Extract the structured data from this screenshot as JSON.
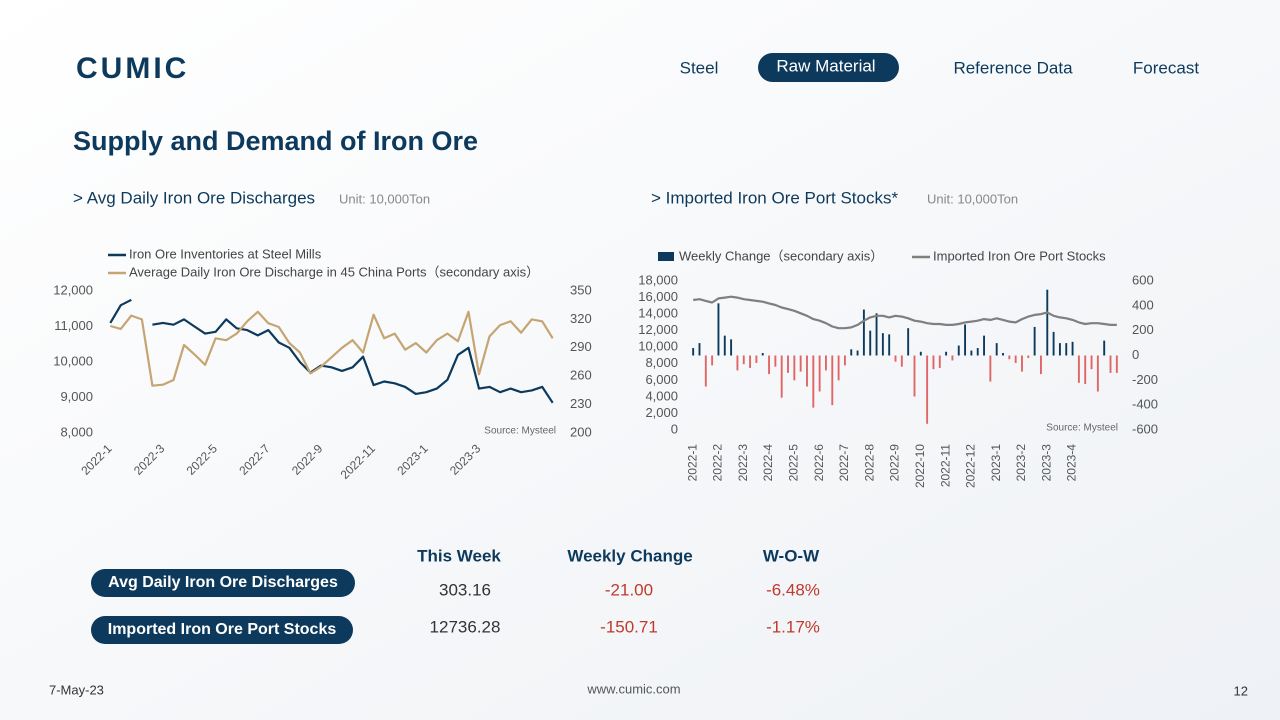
{
  "header": {
    "logo": "CUMIC",
    "nav": [
      "Steel",
      "Raw Material",
      "Reference Data",
      "Forecast"
    ]
  },
  "title": "Supply and Demand of Iron Ore",
  "chart_data": [
    {
      "type": "line",
      "title": "> Avg Daily Iron Ore Discharges",
      "subtitle": "Unit: 10,000Ton",
      "source": "Source: Mysteel",
      "legend": "top-left",
      "categories": [
        "2022-1",
        null,
        null,
        null,
        null,
        "2022-3",
        null,
        null,
        null,
        null,
        "2022-5",
        null,
        null,
        null,
        null,
        "2022-7",
        null,
        null,
        null,
        null,
        "2022-9",
        null,
        null,
        null,
        null,
        "2022-11",
        null,
        null,
        null,
        null,
        "2023-1",
        null,
        null,
        null,
        null,
        "2023-3",
        null,
        null,
        null,
        null,
        null,
        null,
        null
      ],
      "series": [
        {
          "name": "Iron Ore Inventories at Steel Mills",
          "color": "#0d3a5c",
          "values": [
            11100,
            11600,
            11750,
            null,
            11050,
            11100,
            11050,
            11200,
            11000,
            10800,
            10850,
            11200,
            10950,
            10900,
            10750,
            10900,
            10550,
            10400,
            10000,
            9700,
            9900,
            9850,
            9750,
            9850,
            10150,
            9350,
            9450,
            9400,
            9300,
            9100,
            9150,
            9250,
            9500,
            10200,
            10400,
            9250,
            9300,
            9150,
            9250,
            9150,
            9200,
            9300,
            8850
          ]
        },
        {
          "name": "Average Daily Iron Ore Discharge in 45 China Ports（secondary axis）",
          "color": "#c5a572",
          "axis": "y2",
          "values": [
            313,
            310,
            324,
            320,
            250,
            251,
            256,
            293,
            283,
            272,
            300,
            298,
            305,
            318,
            328,
            316,
            312,
            295,
            285,
            263,
            270,
            280,
            290,
            298,
            285,
            325,
            300,
            305,
            288,
            295,
            285,
            298,
            305,
            297,
            328,
            262,
            302,
            314,
            318,
            306,
            320,
            318,
            300
          ]
        }
      ],
      "ylim": [
        8000,
        12000
      ],
      "yticks": [
        {
          "value": 8000,
          "label": "8,000"
        },
        {
          "value": 9000,
          "label": "9,000"
        },
        {
          "value": 10000,
          "label": "10,000"
        },
        {
          "value": 11000,
          "label": "11,000"
        },
        {
          "value": 12000,
          "label": "12,000"
        }
      ],
      "y2lim": [
        200,
        350
      ],
      "y2ticks": [
        200,
        230,
        260,
        290,
        320,
        350
      ]
    },
    {
      "type": "combo",
      "title": "> Imported Iron Ore Port Stocks*",
      "subtitle": "Unit: 10,000Ton",
      "source": "Source: Mysteel",
      "legend": "top",
      "categories": [
        "2022-1",
        null,
        null,
        null,
        "2022-2",
        null,
        null,
        null,
        "2022-3",
        null,
        null,
        null,
        "2022-4",
        null,
        null,
        null,
        "2022-5",
        null,
        null,
        null,
        "2022-6",
        null,
        null,
        null,
        "2022-7",
        null,
        null,
        null,
        "2022-8",
        null,
        null,
        null,
        "2022-9",
        null,
        null,
        null,
        "2022-10",
        null,
        null,
        null,
        "2022-11",
        null,
        null,
        null,
        "2022-12",
        null,
        null,
        null,
        "2023-1",
        null,
        null,
        null,
        "2023-2",
        null,
        null,
        null,
        "2023-3",
        null,
        null,
        null,
        "2023-4",
        null,
        null,
        null,
        null,
        null,
        null,
        null
      ],
      "series": [
        {
          "name": "Weekly Change（secondary axis）",
          "type": "bar",
          "axis": "y2",
          "color": "#0d3a5c",
          "negative_color": "#e06666",
          "values": [
            60,
            100,
            -250,
            -80,
            420,
            160,
            130,
            -120,
            -70,
            -100,
            -60,
            20,
            -150,
            -90,
            -340,
            -140,
            -200,
            -130,
            -250,
            -420,
            -290,
            -120,
            -400,
            -200,
            -80,
            50,
            40,
            370,
            200,
            340,
            180,
            170,
            -50,
            -90,
            220,
            -330,
            30,
            -550,
            -110,
            -100,
            30,
            -40,
            80,
            250,
            40,
            60,
            160,
            -210,
            100,
            20,
            -30,
            -60,
            -130,
            -20,
            230,
            -150,
            530,
            190,
            100,
            100,
            110,
            -220,
            -230,
            -110,
            -290,
            120,
            -140,
            -140
          ]
        },
        {
          "name": "Imported Iron Ore Port Stocks",
          "type": "line",
          "color": "#7f7f7f",
          "values": [
            15700,
            15800,
            15600,
            15400,
            15900,
            16000,
            16100,
            16000,
            15800,
            15700,
            15600,
            15500,
            15300,
            15100,
            14800,
            14600,
            14400,
            14100,
            13800,
            13400,
            13200,
            12900,
            12500,
            12300,
            12300,
            12400,
            12700,
            13200,
            13600,
            13800,
            13800,
            13600,
            13800,
            13700,
            13500,
            13200,
            13100,
            12900,
            12800,
            12800,
            12700,
            12700,
            12800,
            13000,
            13100,
            13200,
            13400,
            13300,
            13500,
            13300,
            13100,
            13000,
            13400,
            13700,
            13900,
            14000,
            14200,
            13800,
            13600,
            13500,
            13300,
            13000,
            12800,
            12900,
            12900,
            12800,
            12700,
            12700
          ]
        }
      ],
      "ylim": [
        0,
        18000
      ],
      "yticks": [
        0,
        {
          "value": 2000,
          "label": "2,000"
        },
        {
          "value": 4000,
          "label": "4,000"
        },
        {
          "value": 6000,
          "label": "6,000"
        },
        {
          "value": 8000,
          "label": "8,000"
        },
        {
          "value": 10000,
          "label": "10,000"
        },
        {
          "value": 12000,
          "label": "12,000"
        },
        {
          "value": 14000,
          "label": "14,000"
        },
        {
          "value": 16000,
          "label": "16,000"
        },
        {
          "value": 18000,
          "label": "18,000"
        }
      ],
      "y2lim": [
        -600,
        600
      ],
      "y2ticks": [
        -600,
        -400,
        -200,
        0,
        200,
        400,
        600
      ]
    }
  ],
  "table": {
    "columns": [
      "This Week",
      "Weekly Change",
      "W-O-W"
    ],
    "rows": [
      [
        "Avg Daily Iron Ore Discharges",
        "303.16",
        "-21.00",
        "-6.48%"
      ],
      [
        "Imported Iron Ore Port Stocks",
        "12736.28",
        "-150.71",
        "-1.17%"
      ]
    ]
  },
  "footer": {
    "date": "7-May-23",
    "url": "www.cumic.com",
    "page": "12"
  }
}
